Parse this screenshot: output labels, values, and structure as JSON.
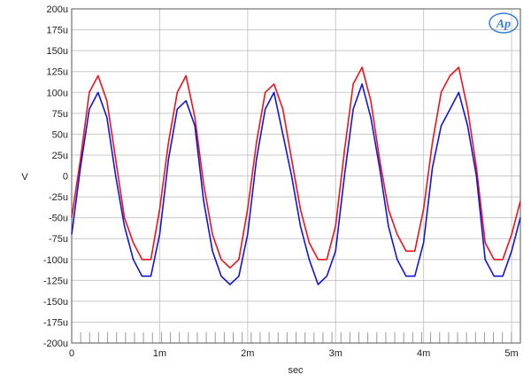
{
  "chart_data": {
    "type": "line",
    "title": "",
    "xlabel": "sec",
    "ylabel": "V",
    "xlim": [
      0,
      0.0051
    ],
    "ylim": [
      -0.0002,
      0.0002
    ],
    "grid": true,
    "x_ticks": [
      {
        "value": 0,
        "label": "0"
      },
      {
        "value": 0.001,
        "label": "1m"
      },
      {
        "value": 0.002,
        "label": "2m"
      },
      {
        "value": 0.003,
        "label": "3m"
      },
      {
        "value": 0.004,
        "label": "4m"
      },
      {
        "value": 0.005,
        "label": "5m"
      }
    ],
    "y_ticks": [
      {
        "value": 0.0002,
        "label": "200u"
      },
      {
        "value": 0.000175,
        "label": "175u"
      },
      {
        "value": 0.00015,
        "label": "150u"
      },
      {
        "value": 0.000125,
        "label": "125u"
      },
      {
        "value": 0.0001,
        "label": "100u"
      },
      {
        "value": 7.5e-05,
        "label": "75u"
      },
      {
        "value": 5e-05,
        "label": "50u"
      },
      {
        "value": 2.5e-05,
        "label": "25u"
      },
      {
        "value": 0,
        "label": "0"
      },
      {
        "value": -2.5e-05,
        "label": "-25u"
      },
      {
        "value": -5e-05,
        "label": "-50u"
      },
      {
        "value": -7.5e-05,
        "label": "-75u"
      },
      {
        "value": -0.0001,
        "label": "-100u"
      },
      {
        "value": -0.000125,
        "label": "-125u"
      },
      {
        "value": -0.00015,
        "label": "-150u"
      },
      {
        "value": -0.000175,
        "label": "-175u"
      },
      {
        "value": -0.0002,
        "label": "-200u"
      }
    ],
    "series": [
      {
        "color": "#e8141e",
        "x": [
          0,
          0.0001,
          0.0002,
          0.0003,
          0.0004,
          0.0005,
          0.0006,
          0.0007,
          0.0008,
          0.0009,
          0.001,
          0.0011,
          0.0012,
          0.0013,
          0.0014,
          0.0015,
          0.0016,
          0.0017,
          0.0018,
          0.0019,
          0.002,
          0.0021,
          0.0022,
          0.0023,
          0.0024,
          0.0025,
          0.0026,
          0.0027,
          0.0028,
          0.0029,
          0.003,
          0.0031,
          0.0032,
          0.0033,
          0.0034,
          0.0035,
          0.0036,
          0.0037,
          0.0038,
          0.0039,
          0.004,
          0.0041,
          0.0042,
          0.0043,
          0.0044,
          0.0045,
          0.0046,
          0.0047,
          0.0048,
          0.0049,
          0.005,
          0.0051
        ],
        "y": [
          -5e-05,
          2e-05,
          0.0001,
          0.00012,
          9e-05,
          2e-05,
          -5e-05,
          -8e-05,
          -0.0001,
          -0.0001,
          -4e-05,
          4e-05,
          0.0001,
          0.00012,
          7e-05,
          -1e-05,
          -7e-05,
          -0.0001,
          -0.00011,
          -0.0001,
          -4e-05,
          4e-05,
          0.0001,
          0.00011,
          8e-05,
          2e-05,
          -4e-05,
          -8e-05,
          -0.0001,
          -0.0001,
          -6e-05,
          3e-05,
          0.00011,
          0.00013,
          9e-05,
          2e-05,
          -4e-05,
          -7e-05,
          -9e-05,
          -9e-05,
          -4e-05,
          4e-05,
          0.0001,
          0.00012,
          0.00013,
          8e-05,
          1e-05,
          -8e-05,
          -0.0001,
          -0.0001,
          -7e-05,
          -3e-05
        ]
      },
      {
        "color": "#1414d6",
        "x": [
          0,
          0.0001,
          0.0002,
          0.0003,
          0.0004,
          0.0005,
          0.0006,
          0.0007,
          0.0008,
          0.0009,
          0.001,
          0.0011,
          0.0012,
          0.0013,
          0.0014,
          0.0015,
          0.0016,
          0.0017,
          0.0018,
          0.0019,
          0.002,
          0.0021,
          0.0022,
          0.0023,
          0.0024,
          0.0025,
          0.0026,
          0.0027,
          0.0028,
          0.0029,
          0.003,
          0.0031,
          0.0032,
          0.0033,
          0.0034,
          0.0035,
          0.0036,
          0.0037,
          0.0038,
          0.0039,
          0.004,
          0.0041,
          0.0042,
          0.0043,
          0.0044,
          0.0045,
          0.0046,
          0.0047,
          0.0048,
          0.0049,
          0.005,
          0.0051
        ],
        "y": [
          -7e-05,
          1e-05,
          8e-05,
          0.0001,
          7e-05,
          0,
          -6e-05,
          -0.0001,
          -0.00012,
          -0.00012,
          -7e-05,
          2e-05,
          8e-05,
          9e-05,
          6e-05,
          -3e-05,
          -9e-05,
          -0.00012,
          -0.00013,
          -0.00012,
          -7e-05,
          2e-05,
          8e-05,
          0.0001,
          5e-05,
          0,
          -6e-05,
          -0.0001,
          -0.00013,
          -0.00012,
          -9e-05,
          0,
          8e-05,
          0.00011,
          7e-05,
          1e-05,
          -6e-05,
          -0.0001,
          -0.00012,
          -0.00012,
          -8e-05,
          1e-05,
          6e-05,
          8e-05,
          0.0001,
          6e-05,
          0,
          -0.0001,
          -0.00012,
          -0.00012,
          -9e-05,
          -5e-05
        ]
      }
    ]
  }
}
